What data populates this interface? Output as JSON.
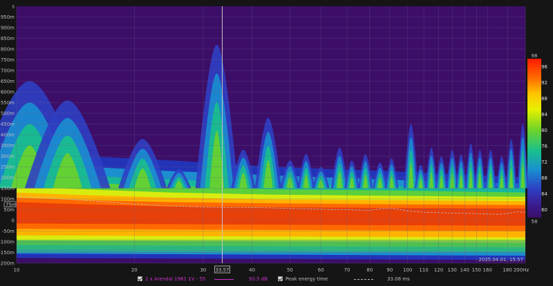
{
  "colors": {
    "background": "#151515",
    "plot_floor": "#3c0e68",
    "grid": "#6a5a84",
    "cursor": "#c8c8c8",
    "series_color": "#cc33cc",
    "peak_line": "#bdbdbd"
  },
  "chart_data": {
    "type": "heatmap",
    "title": "",
    "subtitle": "",
    "xlabel": "",
    "ylabel": "",
    "x_scale": "log",
    "xlim": [
      10,
      200
    ],
    "ylim": [
      -200,
      1000
    ],
    "x_ticks": [
      "10",
      "20",
      "30",
      "40",
      "50",
      "60",
      "70",
      "80",
      "90",
      "100",
      "110",
      "120",
      "130",
      "140",
      "150",
      "160",
      "180",
      "200Hz"
    ],
    "x_tick_values": [
      10,
      20,
      30,
      40,
      50,
      60,
      70,
      80,
      90,
      100,
      110,
      120,
      130,
      140,
      150,
      160,
      180,
      200
    ],
    "y_ticks": [
      "s",
      "950m",
      "900m",
      "850m",
      "800m",
      "750m",
      "700m",
      "650m",
      "600m",
      "550m",
      "500m",
      "450m",
      "400m",
      "350m",
      "300m",
      "250m",
      "200m",
      "150m",
      "100m",
      "50m",
      "0",
      "-50m",
      "-100m",
      "-150m",
      "-200m"
    ],
    "y_tick_values": [
      1000,
      950,
      900,
      850,
      800,
      750,
      700,
      650,
      600,
      550,
      500,
      450,
      400,
      350,
      300,
      250,
      200,
      150,
      100,
      50,
      0,
      -50,
      -100,
      -150,
      -200
    ],
    "colorbar": {
      "min": 58,
      "max": 98,
      "top_label": "98",
      "bottom_label": "58",
      "ticks": [
        "96",
        "92",
        "88",
        "84",
        "80",
        "76",
        "72",
        "68",
        "64",
        "60"
      ],
      "tick_values": [
        96,
        92,
        88,
        84,
        80,
        76,
        72,
        68,
        64,
        60
      ]
    },
    "cursor": {
      "x": 33.57,
      "label": "33.57"
    },
    "y_marker": {
      "label": "75m",
      "value": 75
    },
    "timestamp": "2025.04.01. 15:57",
    "peak_energy_time": {
      "x": [
        10,
        12,
        14,
        16,
        18,
        20,
        22,
        24,
        26,
        28,
        30,
        33,
        36,
        40,
        45,
        50,
        55,
        60,
        65,
        70,
        75,
        80,
        85,
        90,
        95,
        100,
        110,
        120,
        130,
        140,
        150,
        160,
        170,
        180,
        190,
        200
      ],
      "y": [
        110,
        105,
        97,
        90,
        82,
        76,
        72,
        68,
        66,
        64,
        62,
        60,
        60,
        60,
        58,
        56,
        54,
        52,
        50,
        50,
        48,
        47,
        54,
        56,
        52,
        44,
        38,
        36,
        34,
        33,
        32,
        30,
        28,
        32,
        40,
        38
      ]
    },
    "decay_ridges": [
      {
        "x": 10.8,
        "t": 650,
        "w": 0.09
      },
      {
        "x": 13.5,
        "t": 560,
        "w": 0.07
      },
      {
        "x": 21,
        "t": 380,
        "w": 0.04
      },
      {
        "x": 26,
        "t": 240,
        "w": 0.02
      },
      {
        "x": 32.5,
        "t": 820,
        "w": 0.035
      },
      {
        "x": 38,
        "t": 330,
        "w": 0.02
      },
      {
        "x": 44,
        "t": 480,
        "w": 0.022
      },
      {
        "x": 50,
        "t": 280,
        "w": 0.016
      },
      {
        "x": 55,
        "t": 310,
        "w": 0.014
      },
      {
        "x": 60,
        "t": 250,
        "w": 0.014
      },
      {
        "x": 67,
        "t": 340,
        "w": 0.014
      },
      {
        "x": 72,
        "t": 280,
        "w": 0.012
      },
      {
        "x": 78,
        "t": 310,
        "w": 0.012
      },
      {
        "x": 85,
        "t": 270,
        "w": 0.012
      },
      {
        "x": 91,
        "t": 290,
        "w": 0.011
      },
      {
        "x": 102,
        "t": 450,
        "w": 0.012
      },
      {
        "x": 108,
        "t": 260,
        "w": 0.01
      },
      {
        "x": 115,
        "t": 340,
        "w": 0.01
      },
      {
        "x": 122,
        "t": 300,
        "w": 0.01
      },
      {
        "x": 130,
        "t": 330,
        "w": 0.01
      },
      {
        "x": 137,
        "t": 310,
        "w": 0.009
      },
      {
        "x": 145,
        "t": 360,
        "w": 0.009
      },
      {
        "x": 153,
        "t": 330,
        "w": 0.009
      },
      {
        "x": 163,
        "t": 330,
        "w": 0.009
      },
      {
        "x": 174,
        "t": 300,
        "w": 0.009
      },
      {
        "x": 184,
        "t": 380,
        "w": 0.009
      },
      {
        "x": 197,
        "t": 450,
        "w": 0.009
      }
    ]
  },
  "legend": {
    "series_label": "2 x Arendal 1961 1V - 55",
    "series_value": "93.5 dB",
    "peak_label": "Peak energy time",
    "peak_value": "33.08 ms"
  }
}
